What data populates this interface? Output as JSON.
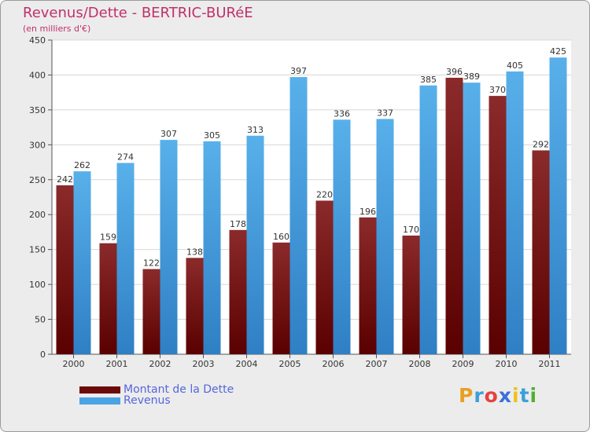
{
  "title": "Revenus/Dette - BERTRIC-BURéE",
  "subtitle": "(en milliers d'€)",
  "logo": {
    "letters": [
      "P",
      "r",
      "o",
      "x",
      "i",
      "t",
      "i"
    ],
    "colors": [
      "#e8a020",
      "#3aa0d8",
      "#e84040",
      "#3a6fd8",
      "#f0c020",
      "#3aa0d8",
      "#50b030"
    ]
  },
  "legend": [
    {
      "label": "Montant de la Dette",
      "color": "#6b0a0a"
    },
    {
      "label": "Revenus",
      "color": "#4aa3e3"
    }
  ],
  "chart_data": {
    "type": "bar",
    "categories": [
      "2000",
      "2001",
      "2002",
      "2003",
      "2004",
      "2005",
      "2006",
      "2007",
      "2008",
      "2009",
      "2010",
      "2011"
    ],
    "series": [
      {
        "name": "Montant de la Dette",
        "color": "#7a1515",
        "values": [
          242,
          159,
          122,
          138,
          178,
          160,
          220,
          196,
          170,
          396,
          370,
          292
        ]
      },
      {
        "name": "Revenus",
        "color": "#4aa3e3",
        "values": [
          262,
          274,
          307,
          305,
          313,
          397,
          336,
          337,
          385,
          389,
          405,
          425
        ]
      }
    ],
    "ylim": [
      0,
      450
    ],
    "yticks": [
      0,
      50,
      100,
      150,
      200,
      250,
      300,
      350,
      400,
      450
    ],
    "grid": true,
    "legend_position": "bottom-left"
  }
}
